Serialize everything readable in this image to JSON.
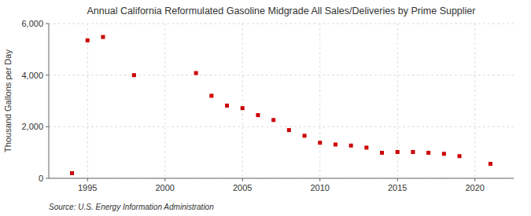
{
  "chart_data": {
    "type": "scatter",
    "title": "Annual California Reformulated Gasoline Midgrade All Sales/Deliveries by Prime Supplier",
    "ylabel": "Thousand Gallons per Day",
    "annotations": [
      "Source: U.S. Energy Information Administration"
    ],
    "x": [
      1994,
      1995,
      1996,
      1998,
      2002,
      2003,
      2004,
      2005,
      2006,
      2007,
      2008,
      2009,
      2010,
      2011,
      2012,
      2013,
      2014,
      2015,
      2016,
      2017,
      2018,
      2019,
      2021
    ],
    "values": [
      200,
      5350,
      5480,
      4000,
      4080,
      3200,
      2820,
      2720,
      2450,
      2260,
      1870,
      1650,
      1380,
      1310,
      1270,
      1190,
      990,
      1020,
      1020,
      990,
      950,
      860,
      560
    ],
    "color": "#cc0000",
    "marker": "square",
    "xlim": [
      1992.5,
      2022.5
    ],
    "ylim": [
      0,
      6000
    ],
    "xticks": [
      1995,
      2000,
      2005,
      2010,
      2015,
      2020
    ],
    "yticks": [
      0,
      {
        "value": 2000,
        "label": "2,000"
      },
      {
        "value": 4000,
        "label": "4,000"
      },
      {
        "value": 6000,
        "label": "6,000"
      }
    ],
    "grid": true
  }
}
